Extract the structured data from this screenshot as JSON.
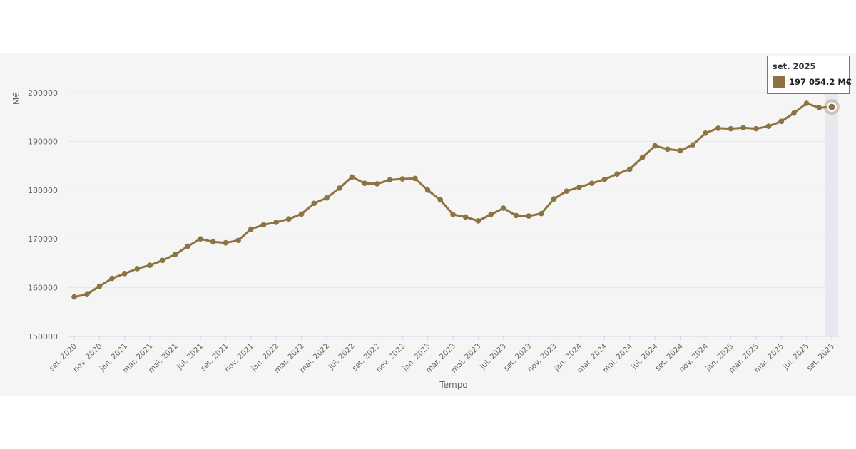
{
  "colors": {
    "series": "#8c7341",
    "background": "#f5f5f5",
    "grid": "#e6e6e6",
    "highlight": "#e6e9f0"
  },
  "chart_data": {
    "type": "line",
    "title": "",
    "ylabel": "M€",
    "xlabel": "Tempo",
    "ylim": [
      150000,
      200000
    ],
    "yticks": [
      150000,
      160000,
      170000,
      180000,
      190000,
      200000
    ],
    "grid": true,
    "x": [
      "set. 2020",
      "out. 2020",
      "nov. 2020",
      "dez. 2020",
      "jan. 2021",
      "fev. 2021",
      "mar. 2021",
      "abr. 2021",
      "mai. 2021",
      "jun. 2021",
      "jul. 2021",
      "ago. 2021",
      "set. 2021",
      "out. 2021",
      "nov. 2021",
      "dez. 2021",
      "jan. 2022",
      "fev. 2022",
      "mar. 2022",
      "abr. 2022",
      "mai. 2022",
      "jun. 2022",
      "jul. 2022",
      "ago. 2022",
      "set. 2022",
      "out. 2022",
      "nov. 2022",
      "dez. 2022",
      "jan. 2023",
      "fev. 2023",
      "mar. 2023",
      "abr. 2023",
      "mai. 2023",
      "jun. 2023",
      "jul. 2023",
      "ago. 2023",
      "set. 2023",
      "out. 2023",
      "nov. 2023",
      "dez. 2023",
      "jan. 2024",
      "fev. 2024",
      "mar. 2024",
      "abr. 2024",
      "mai. 2024",
      "jun. 2024",
      "jul. 2024",
      "ago. 2024",
      "set. 2024",
      "out. 2024",
      "nov. 2024",
      "dez. 2024",
      "jan. 2025",
      "fev. 2025",
      "mar. 2025",
      "abr. 2025",
      "mai. 2025",
      "jun. 2025",
      "jul. 2025",
      "ago. 2025",
      "set. 2025"
    ],
    "xtick_labels": [
      "set. 2020",
      "nov. 2020",
      "jan. 2021",
      "mar. 2021",
      "mai. 2021",
      "jul. 2021",
      "set. 2021",
      "nov. 2021",
      "jan. 2022",
      "mar. 2022",
      "mai. 2022",
      "jul. 2022",
      "set. 2022",
      "nov. 2022",
      "jan. 2023",
      "mar. 2023",
      "mai. 2023",
      "jul. 2023",
      "set. 2023",
      "nov. 2023",
      "jan. 2024",
      "mar. 2024",
      "mai. 2024",
      "jul. 2024",
      "set. 2024",
      "nov. 2024",
      "jan. 2025",
      "mar. 2025",
      "mai. 2025",
      "jul. 2025",
      "set. 2025"
    ],
    "series": [
      {
        "values": [
          158100,
          158600,
          160300,
          161900,
          162900,
          163900,
          164600,
          165600,
          166800,
          168500,
          170000,
          169400,
          169200,
          169700,
          172000,
          172900,
          173400,
          174100,
          175100,
          177300,
          178400,
          180400,
          182700,
          181400,
          181300,
          182100,
          182300,
          182400,
          180000,
          178000,
          175000,
          174500,
          173700,
          175000,
          176300,
          174800,
          174700,
          175200,
          178200,
          179800,
          180600,
          181400,
          182200,
          183300,
          184300,
          186700,
          189100,
          188400,
          188100,
          189300,
          191700,
          192700,
          192600,
          192800,
          192600,
          193100,
          194100,
          195800,
          197800,
          196900,
          197054.2
        ]
      }
    ],
    "tooltip": {
      "label": "set. 2025",
      "value": "197 054.2 M€"
    }
  }
}
